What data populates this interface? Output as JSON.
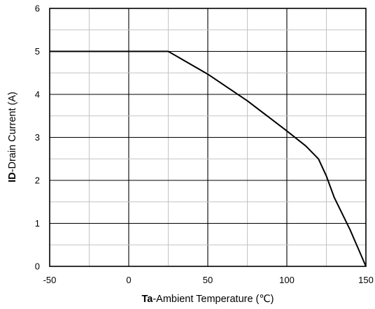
{
  "chart_data": {
    "type": "line",
    "title": "",
    "xlabel": {
      "prefix": "Ta",
      "suffix": "-Ambient Temperature (℃)"
    },
    "ylabel": {
      "prefix": "ID",
      "suffix": "-Drain Current (A)"
    },
    "xlim": [
      -50,
      150
    ],
    "ylim": [
      0,
      6
    ],
    "xticks": [
      -50,
      0,
      50,
      100,
      150
    ],
    "yticks": [
      0,
      1,
      2,
      3,
      4,
      5,
      6
    ],
    "x_tick_labels": [
      "-50",
      "0",
      "50",
      "100",
      "150"
    ],
    "y_tick_labels": [
      "0",
      "1",
      "2",
      "3",
      "4",
      "5",
      "6"
    ],
    "grid": true,
    "grid_minor": {
      "x_step": 25,
      "y_step": 0.5
    },
    "series": [
      {
        "x": [
          -50,
          25,
          50,
          75,
          100,
          112,
          120,
          125,
          130,
          140,
          150
        ],
        "y": [
          5.0,
          5.0,
          4.47,
          3.85,
          3.15,
          2.8,
          2.5,
          2.1,
          1.6,
          0.85,
          0.0
        ],
        "color": "#000000"
      }
    ]
  }
}
